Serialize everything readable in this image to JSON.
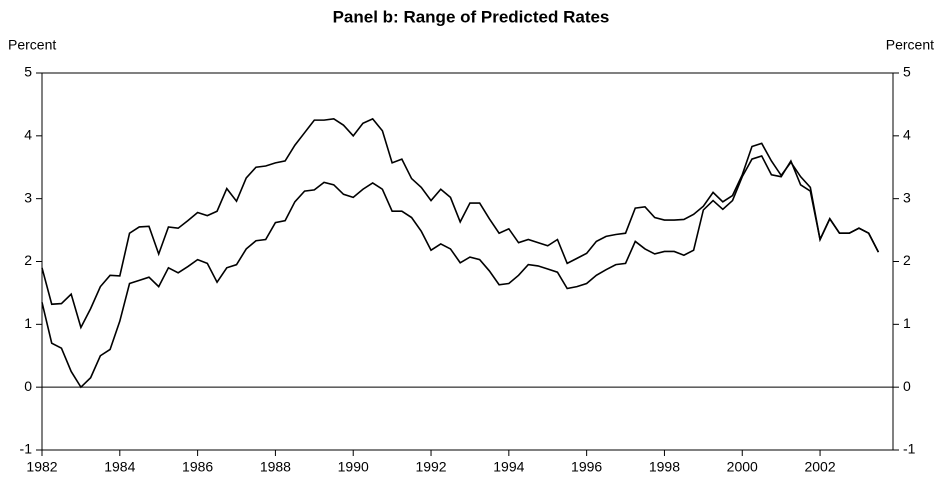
{
  "chart_data": {
    "type": "line",
    "title": "Panel b: Range of Predicted Rates",
    "ylabel": "Percent",
    "y2label": "Percent",
    "x": [
      1982,
      1982.25,
      1982.5,
      1982.75,
      1983,
      1983.25,
      1983.5,
      1983.75,
      1984,
      1984.25,
      1984.5,
      1984.75,
      1985,
      1985.25,
      1985.5,
      1985.75,
      1986,
      1986.25,
      1986.5,
      1986.75,
      1987,
      1987.25,
      1987.5,
      1987.75,
      1988,
      1988.25,
      1988.5,
      1988.75,
      1989,
      1989.25,
      1989.5,
      1989.75,
      1990,
      1990.25,
      1990.5,
      1990.75,
      1991,
      1991.25,
      1991.5,
      1991.75,
      1992,
      1992.25,
      1992.5,
      1992.75,
      1993,
      1993.25,
      1993.5,
      1993.75,
      1994,
      1994.25,
      1994.5,
      1994.75,
      1995,
      1995.25,
      1995.5,
      1995.75,
      1996,
      1996.25,
      1996.5,
      1996.75,
      1997,
      1997.25,
      1997.5,
      1997.75,
      1998,
      1998.25,
      1998.5,
      1998.75,
      1999,
      1999.25,
      1999.5,
      1999.75,
      2000,
      2000.25,
      2000.5,
      2000.75,
      2001,
      2001.25,
      2001.5,
      2001.75,
      2002,
      2002.25,
      2002.5,
      2002.75,
      2003,
      2003.25,
      2003.5
    ],
    "series": [
      {
        "color": "#000000",
        "values": [
          1.9,
          1.32,
          1.33,
          1.48,
          0.95,
          1.25,
          1.6,
          1.78,
          1.77,
          2.45,
          2.55,
          2.56,
          2.12,
          2.55,
          2.53,
          2.65,
          2.78,
          2.73,
          2.8,
          3.16,
          2.96,
          3.33,
          3.5,
          3.52,
          3.57,
          3.6,
          3.85,
          4.05,
          4.25,
          4.25,
          4.27,
          4.17,
          4.0,
          4.2,
          4.27,
          4.08,
          3.57,
          3.63,
          3.32,
          3.18,
          2.97,
          3.15,
          3.02,
          2.63,
          2.93,
          2.93,
          2.68,
          2.45,
          2.52,
          2.3,
          2.35,
          2.3,
          2.25,
          2.35,
          1.97,
          2.05,
          2.13,
          2.32,
          2.4,
          2.43,
          2.45,
          2.85,
          2.87,
          2.7,
          2.66,
          2.66,
          2.67,
          2.75,
          2.88,
          3.1,
          2.95,
          3.05,
          3.38,
          3.83,
          3.88,
          3.6,
          3.37,
          3.58,
          3.35,
          3.18,
          2.35,
          2.68,
          2.45,
          2.45,
          2.53,
          2.45,
          2.15
        ]
      },
      {
        "color": "#000000",
        "values": [
          1.35,
          0.7,
          0.62,
          0.25,
          0.0,
          0.15,
          0.5,
          0.6,
          1.05,
          1.65,
          1.7,
          1.75,
          1.6,
          1.9,
          1.82,
          1.92,
          2.03,
          1.97,
          1.67,
          1.9,
          1.95,
          2.2,
          2.33,
          2.35,
          2.62,
          2.65,
          2.95,
          3.12,
          3.14,
          3.26,
          3.22,
          3.07,
          3.02,
          3.15,
          3.25,
          3.15,
          2.8,
          2.8,
          2.7,
          2.48,
          2.18,
          2.28,
          2.2,
          1.98,
          2.07,
          2.03,
          1.85,
          1.63,
          1.65,
          1.78,
          1.95,
          1.93,
          1.88,
          1.83,
          1.57,
          1.6,
          1.65,
          1.78,
          1.87,
          1.95,
          1.97,
          2.32,
          2.2,
          2.12,
          2.16,
          2.16,
          2.1,
          2.18,
          2.82,
          2.97,
          2.83,
          2.97,
          3.35,
          3.63,
          3.68,
          3.38,
          3.35,
          3.6,
          3.22,
          3.12,
          2.35,
          2.68,
          2.45,
          2.45,
          2.53,
          2.45,
          2.15
        ]
      }
    ],
    "xlim": [
      1982,
      2003.875
    ],
    "xticks": [
      1982,
      1984,
      1986,
      1988,
      1990,
      1992,
      1994,
      1996,
      1998,
      2000,
      2002
    ],
    "ylim": [
      -1,
      5
    ],
    "yticks": [
      -1,
      0,
      1,
      2,
      3,
      4,
      5
    ],
    "y2lim": [
      -1,
      5
    ],
    "y2ticks": [
      -1,
      0,
      1,
      2,
      3,
      4,
      5
    ]
  }
}
